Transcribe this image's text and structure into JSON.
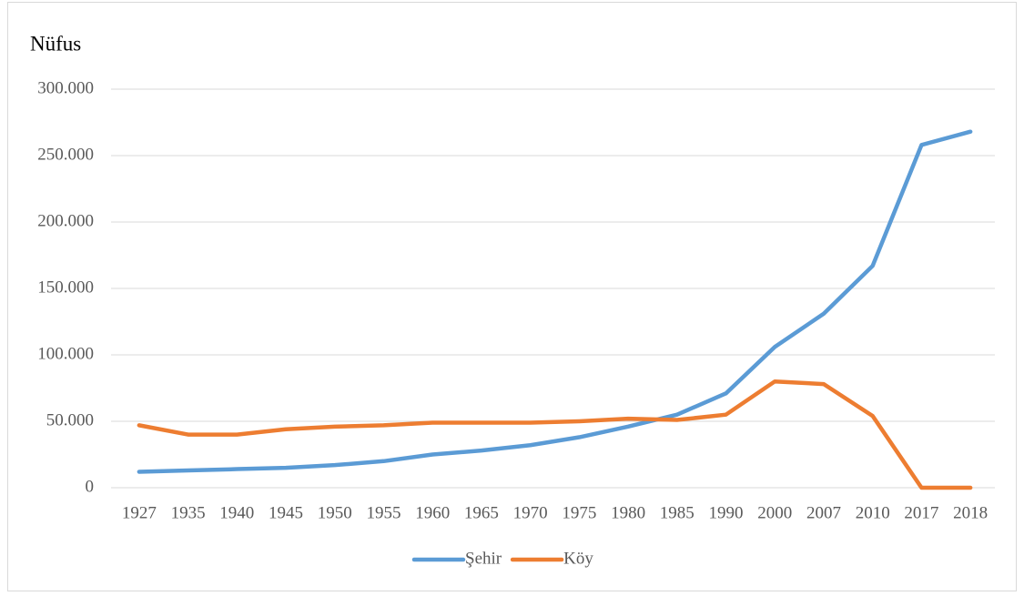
{
  "chart_data": {
    "type": "line",
    "title": "Nüfus",
    "categories": [
      "1927",
      "1935",
      "1940",
      "1945",
      "1950",
      "1955",
      "1960",
      "1965",
      "1970",
      "1975",
      "1980",
      "1985",
      "1990",
      "2000",
      "2007",
      "2010",
      "2017",
      "2018"
    ],
    "series": [
      {
        "name": "Şehir",
        "color": "#5b9bd5",
        "values": [
          12000,
          13000,
          14000,
          15000,
          17000,
          20000,
          25000,
          28000,
          32000,
          38000,
          46000,
          55000,
          71000,
          106000,
          131000,
          167000,
          258000,
          268000
        ]
      },
      {
        "name": "Köy",
        "color": "#ed7d31",
        "values": [
          47000,
          40000,
          40000,
          44000,
          46000,
          47000,
          49000,
          49000,
          49000,
          50000,
          52000,
          51000,
          55000,
          80000,
          78000,
          54000,
          0,
          0
        ]
      }
    ],
    "ylim": [
      0,
      300000
    ],
    "yticks": [
      0,
      {
        "value": 50000,
        "label": "50.000"
      },
      {
        "value": 100000,
        "label": "100.000"
      },
      {
        "value": 150000,
        "label": "150.000"
      },
      {
        "value": 200000,
        "label": "200.000"
      },
      {
        "value": 250000,
        "label": "250.000"
      },
      {
        "value": 300000,
        "label": "300.000"
      }
    ],
    "grid": true,
    "legend": "bottom"
  }
}
